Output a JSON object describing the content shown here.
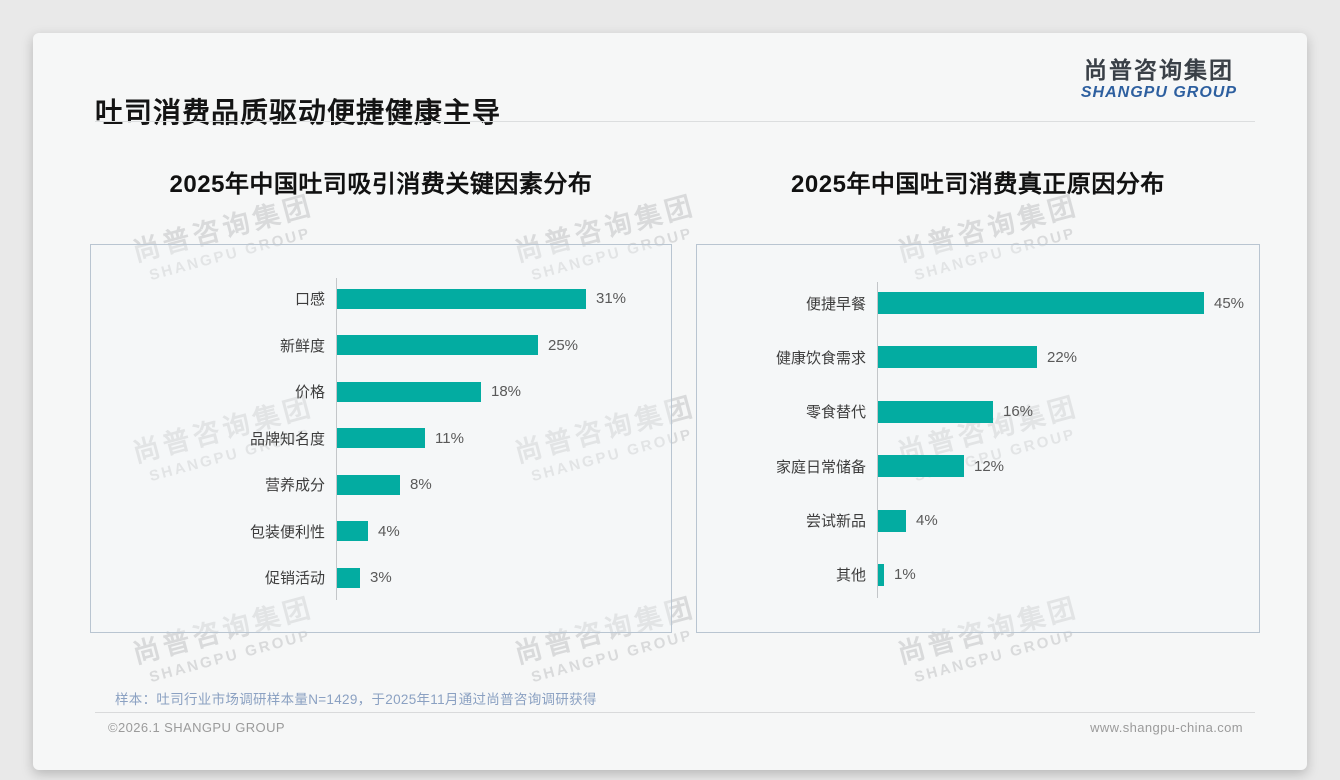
{
  "header": {
    "title": "吐司消费品质驱动便捷健康主导",
    "logo_cn": "尚普咨询集团",
    "logo_en": "SHANGPU GROUP"
  },
  "watermark": {
    "cn": "尚普咨询集团",
    "en": "SHANGPU GROUP"
  },
  "colors": {
    "bar_teal": "#03aca1",
    "logo_blue": "#2d5f9f",
    "note_blue_gray": "#8ba1c2",
    "page_background": "#e9e9e9",
    "panel_border": "#b9c5d1"
  },
  "chart_data": [
    {
      "type": "bar",
      "orientation": "horizontal",
      "title": "2025年中国吐司吸引消费关键因素分布",
      "categories": [
        "口感",
        "新鲜度",
        "价格",
        "品牌知名度",
        "营养成分",
        "包装便利性",
        "促销活动"
      ],
      "values": [
        31,
        25,
        18,
        11,
        8,
        4,
        3
      ],
      "value_labels": [
        "31%",
        "25%",
        "18%",
        "11%",
        "8%",
        "4%",
        "3%"
      ],
      "unit": "%",
      "bar_color": "#03aca1",
      "xlim": [
        0,
        42
      ],
      "grid": false,
      "legend": "none"
    },
    {
      "type": "bar",
      "orientation": "horizontal",
      "title": "2025年中国吐司消费真正原因分布",
      "categories": [
        "便捷早餐",
        "健康饮食需求",
        "零食替代",
        "家庭日常储备",
        "尝试新品",
        "其他"
      ],
      "values": [
        45,
        22,
        16,
        12,
        4,
        1
      ],
      "value_labels": [
        "45%",
        "22%",
        "16%",
        "12%",
        "4%",
        "1%"
      ],
      "unit": "%",
      "bar_color": "#03aca1",
      "xlim": [
        0,
        52
      ],
      "grid": false,
      "legend": "none"
    }
  ],
  "footer": {
    "note": "样本：吐司行业市场调研样本量N=1429，于2025年11月通过尚普咨询调研获得",
    "copyright": "©2026.1 SHANGPU GROUP",
    "website": "www.shangpu-china.com"
  }
}
